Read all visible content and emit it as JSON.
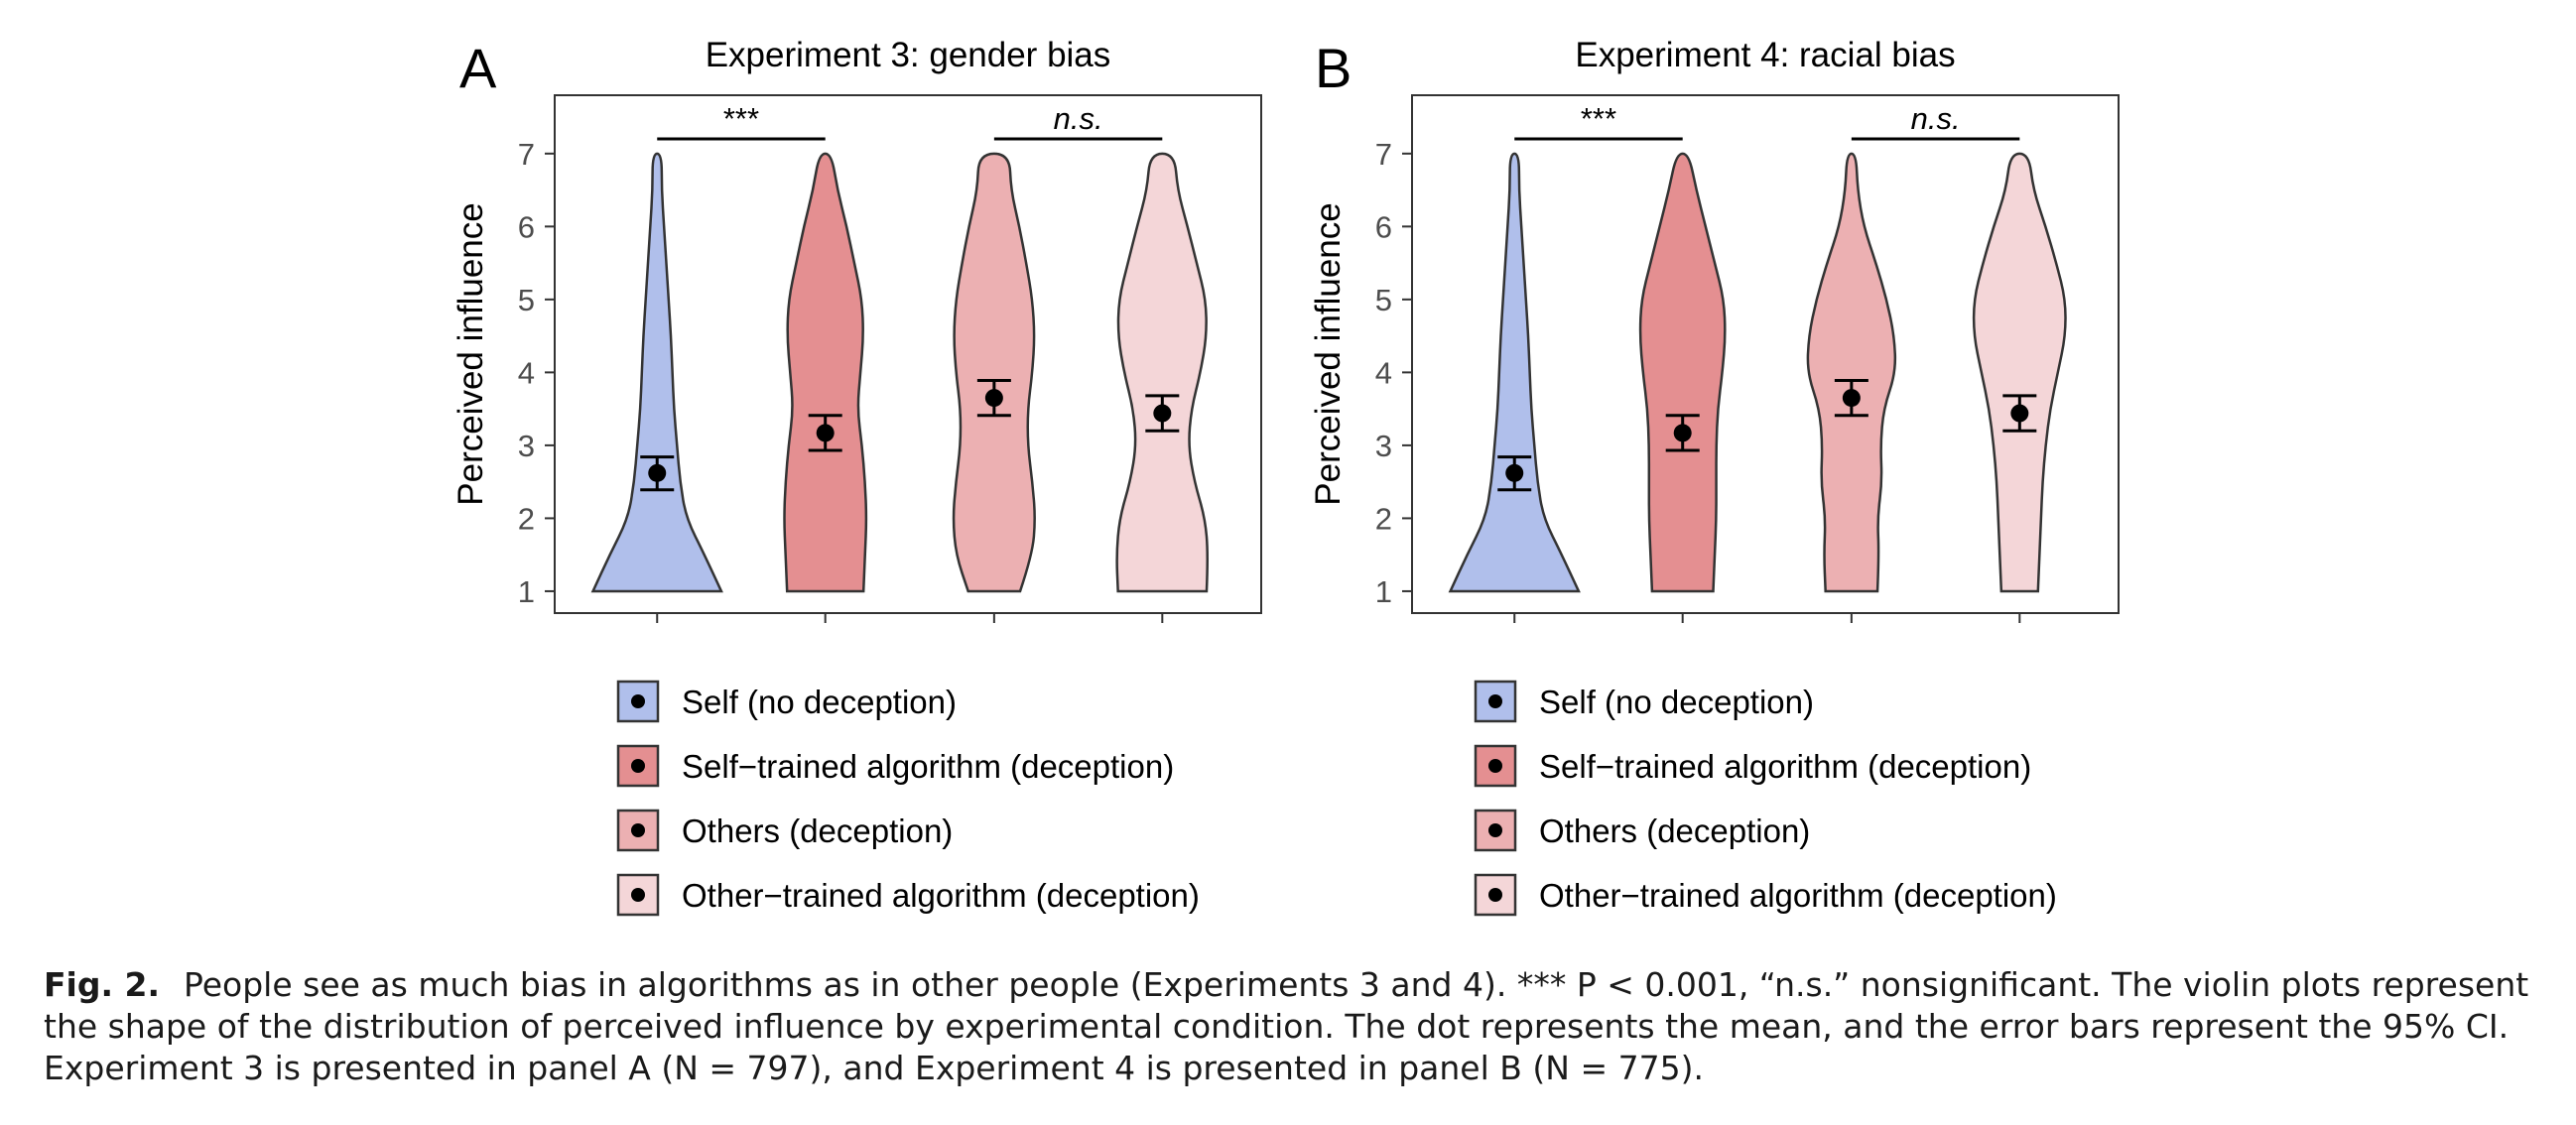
{
  "legend": [
    {
      "label": "Self (no deception)",
      "color": "#b0bfeb"
    },
    {
      "label": "Self−trained algorithm (deception)",
      "color": "#e48f91"
    },
    {
      "label": "Others (deception)",
      "color": "#ecb0b2"
    },
    {
      "label": "Other−trained algorithm (deception)",
      "color": "#f4d6d8"
    }
  ],
  "chart_data": [
    {
      "type": "violin",
      "panel_letter": "A",
      "title": "Experiment 3: gender bias",
      "ylabel": "Perceived influence",
      "ylim": [
        0.7,
        7.8
      ],
      "yticks": [
        1,
        2,
        3,
        4,
        5,
        6,
        7
      ],
      "categories": [
        "Self (no deception)",
        "Self−trained algorithm (deception)",
        "Others (deception)",
        "Other−trained algorithm (deception)"
      ],
      "series": [
        {
          "mean": 2.62,
          "ci": [
            2.39,
            2.84
          ],
          "color": "#b0bfeb",
          "density": [
            [
              1,
              0.84
            ],
            [
              1.5,
              0.62
            ],
            [
              2,
              0.38
            ],
            [
              2.5,
              0.3
            ],
            [
              3,
              0.26
            ],
            [
              3.5,
              0.22
            ],
            [
              4,
              0.2
            ],
            [
              4.5,
              0.18
            ],
            [
              5,
              0.15
            ],
            [
              5.5,
              0.12
            ],
            [
              6,
              0.09
            ],
            [
              6.5,
              0.06
            ],
            [
              7,
              0.06
            ]
          ]
        },
        {
          "mean": 3.17,
          "ci": [
            2.93,
            3.41
          ],
          "color": "#e48f91",
          "density": [
            [
              1,
              0.5
            ],
            [
              1.5,
              0.52
            ],
            [
              2,
              0.54
            ],
            [
              2.5,
              0.52
            ],
            [
              3,
              0.48
            ],
            [
              3.5,
              0.42
            ],
            [
              4,
              0.46
            ],
            [
              4.5,
              0.5
            ],
            [
              5,
              0.48
            ],
            [
              5.5,
              0.38
            ],
            [
              6,
              0.28
            ],
            [
              6.5,
              0.16
            ],
            [
              7,
              0.08
            ]
          ]
        },
        {
          "mean": 3.65,
          "ci": [
            3.41,
            3.89
          ],
          "color": "#ecb0b2",
          "density": [
            [
              1,
              0.34
            ],
            [
              1.5,
              0.5
            ],
            [
              2,
              0.54
            ],
            [
              2.5,
              0.5
            ],
            [
              3,
              0.44
            ],
            [
              3.5,
              0.44
            ],
            [
              4,
              0.5
            ],
            [
              4.5,
              0.53
            ],
            [
              5,
              0.5
            ],
            [
              5.5,
              0.42
            ],
            [
              6,
              0.33
            ],
            [
              6.5,
              0.22
            ],
            [
              7,
              0.2
            ]
          ]
        },
        {
          "mean": 3.44,
          "ci": [
            3.2,
            3.68
          ],
          "color": "#f4d6d8",
          "density": [
            [
              1,
              0.58
            ],
            [
              1.5,
              0.6
            ],
            [
              2,
              0.56
            ],
            [
              2.5,
              0.42
            ],
            [
              3,
              0.34
            ],
            [
              3.5,
              0.38
            ],
            [
              4,
              0.5
            ],
            [
              4.5,
              0.58
            ],
            [
              5,
              0.57
            ],
            [
              5.5,
              0.45
            ],
            [
              6,
              0.33
            ],
            [
              6.5,
              0.2
            ],
            [
              7,
              0.16
            ]
          ]
        }
      ],
      "annotations": [
        {
          "text": "***",
          "italic": false,
          "from": 0,
          "to": 1
        },
        {
          "text": "n.s.",
          "italic": true,
          "from": 2,
          "to": 3
        }
      ]
    },
    {
      "type": "violin",
      "panel_letter": "B",
      "title": "Experiment 4: racial bias",
      "ylabel": "Perceived influence",
      "ylim": [
        0.7,
        7.8
      ],
      "yticks": [
        1,
        2,
        3,
        4,
        5,
        6,
        7
      ],
      "categories": [
        "Self (no deception)",
        "Self−trained algorithm (deception)",
        "Others (deception)",
        "Other−trained algorithm (deception)"
      ],
      "series": [
        {
          "mean": 2.62,
          "ci": [
            2.39,
            2.84
          ],
          "color": "#b0bfeb",
          "density": [
            [
              1,
              0.84
            ],
            [
              1.5,
              0.62
            ],
            [
              2,
              0.38
            ],
            [
              2.5,
              0.3
            ],
            [
              3,
              0.26
            ],
            [
              3.5,
              0.22
            ],
            [
              4,
              0.2
            ],
            [
              4.5,
              0.18
            ],
            [
              5,
              0.15
            ],
            [
              5.5,
              0.12
            ],
            [
              6,
              0.09
            ],
            [
              6.5,
              0.06
            ],
            [
              7,
              0.06
            ]
          ]
        },
        {
          "mean": 3.17,
          "ci": [
            2.93,
            3.41
          ],
          "color": "#e48f91",
          "density": [
            [
              1,
              0.4
            ],
            [
              1.5,
              0.42
            ],
            [
              2,
              0.44
            ],
            [
              2.5,
              0.44
            ],
            [
              3,
              0.44
            ],
            [
              3.5,
              0.46
            ],
            [
              4,
              0.52
            ],
            [
              4.5,
              0.56
            ],
            [
              5,
              0.54
            ],
            [
              5.5,
              0.42
            ],
            [
              6,
              0.3
            ],
            [
              6.5,
              0.18
            ],
            [
              7,
              0.08
            ]
          ]
        },
        {
          "mean": 3.65,
          "ci": [
            3.41,
            3.89
          ],
          "color": "#ecb0b2",
          "density": [
            [
              1,
              0.34
            ],
            [
              1.5,
              0.36
            ],
            [
              2,
              0.34
            ],
            [
              2.5,
              0.4
            ],
            [
              3,
              0.38
            ],
            [
              3.5,
              0.42
            ],
            [
              4,
              0.58
            ],
            [
              4.5,
              0.56
            ],
            [
              5,
              0.46
            ],
            [
              5.5,
              0.32
            ],
            [
              6,
              0.16
            ],
            [
              6.5,
              0.08
            ],
            [
              7,
              0.06
            ]
          ]
        },
        {
          "mean": 3.44,
          "ci": [
            3.2,
            3.68
          ],
          "color": "#f4d6d8",
          "density": [
            [
              1,
              0.24
            ],
            [
              1.5,
              0.26
            ],
            [
              2,
              0.28
            ],
            [
              2.5,
              0.3
            ],
            [
              3,
              0.34
            ],
            [
              3.5,
              0.4
            ],
            [
              4,
              0.5
            ],
            [
              4.5,
              0.6
            ],
            [
              5,
              0.6
            ],
            [
              5.5,
              0.48
            ],
            [
              6,
              0.34
            ],
            [
              6.5,
              0.18
            ],
            [
              7,
              0.12
            ]
          ]
        }
      ],
      "annotations": [
        {
          "text": "***",
          "italic": false,
          "from": 0,
          "to": 1
        },
        {
          "text": "n.s.",
          "italic": true,
          "from": 2,
          "to": 3
        }
      ]
    }
  ],
  "caption": {
    "label": "Fig. 2.",
    "text": "People see as much bias in algorithms as in other people (Experiments 3 and 4). *** P < 0.001, “n.s.” nonsignificant. The violin plots represent the shape of the distribution of perceived influence by experimental condition. The dot represents the mean, and the error bars represent the 95% CI. Experiment 3 is presented in panel A (N = 797), and Experiment 4 is presented in panel B (N = 775)."
  }
}
